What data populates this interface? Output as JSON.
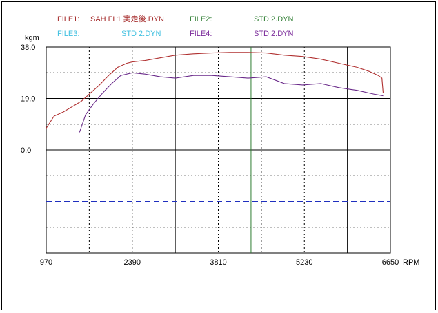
{
  "header": {
    "files": [
      {
        "label": "FILE1:",
        "value": "SAH  FL1  実走後.DYN",
        "color": "#a52a2a"
      },
      {
        "label": "FILE2:",
        "value": "STD 2.DYN",
        "color": "#2e7d32"
      },
      {
        "label": "FILE3:",
        "value": "STD 2.DYN",
        "color": "#40c0e0"
      },
      {
        "label": "FILE4:",
        "value": "STD 2.DYN",
        "color": "#7a2a9a"
      }
    ]
  },
  "chart_data": {
    "type": "line",
    "ylabel": "kgm",
    "xlabel": "RPM",
    "xlim": [
      970,
      6650
    ],
    "ylim": [
      -38.0,
      38.0
    ],
    "x_ticks": [
      "970",
      "2390",
      "3810",
      "5230",
      "6650"
    ],
    "y_ticks": [
      "38.0",
      "19.0",
      "0.0"
    ],
    "grid": true,
    "marker_rpm": 4350,
    "marker_color": "#2e7d32",
    "dashed_level": -19.0,
    "dashed_color": "#1f2fbf",
    "series": [
      {
        "color": "#b03030",
        "x": [
          970,
          1100,
          1250,
          1400,
          1550,
          1700,
          1850,
          2000,
          2150,
          2300,
          2390,
          2600,
          2850,
          3100,
          3400,
          3700,
          4000,
          4300,
          4600,
          4900,
          5200,
          5500,
          5800,
          6100,
          6300,
          6450,
          6510,
          6530
        ],
        "y": [
          8.0,
          12.5,
          14.0,
          16.0,
          18.0,
          21.0,
          24.0,
          27.5,
          30.5,
          32.0,
          32.5,
          33.0,
          34.0,
          35.0,
          35.5,
          35.8,
          36.0,
          36.0,
          35.8,
          35.0,
          34.5,
          33.5,
          32.0,
          30.5,
          29.0,
          27.5,
          26.5,
          21.0
        ]
      },
      {
        "color": "#6a2a8a",
        "x": [
          1520,
          1620,
          1750,
          1900,
          2050,
          2200,
          2390,
          2600,
          2850,
          3100,
          3400,
          3700,
          4000,
          4300,
          4600,
          4900,
          5200,
          5500,
          5800,
          6100,
          6400,
          6530
        ],
        "y": [
          6.5,
          13.0,
          17.0,
          21.0,
          24.5,
          27.5,
          28.5,
          28.0,
          27.0,
          26.5,
          27.5,
          27.5,
          27.0,
          26.5,
          27.0,
          24.5,
          24.0,
          24.5,
          23.0,
          22.0,
          20.5,
          20.0
        ]
      }
    ]
  }
}
